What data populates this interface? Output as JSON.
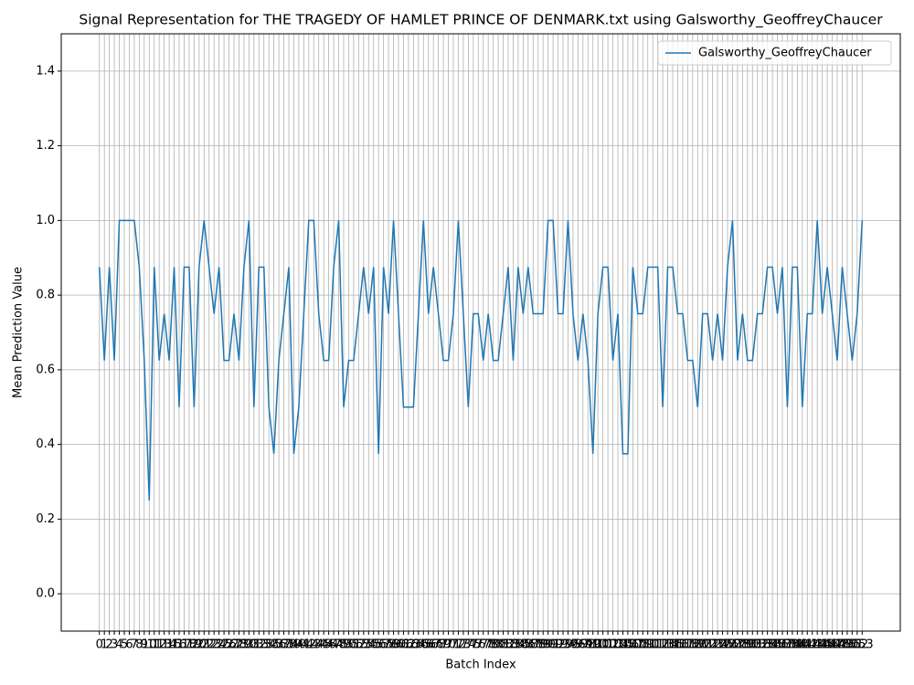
{
  "chart_data": {
    "type": "line",
    "title": "Signal Representation for THE TRAGEDY OF HAMLET PRINCE OF DENMARK.txt using Galsworthy_GeoffreyChaucer",
    "xlabel": "Batch Index",
    "ylabel": "Mean Prediction Value",
    "x": [
      0,
      1,
      2,
      3,
      4,
      5,
      6,
      7,
      8,
      9,
      10,
      11,
      12,
      13,
      14,
      15,
      16,
      17,
      18,
      19,
      20,
      21,
      22,
      23,
      24,
      25,
      26,
      27,
      28,
      29,
      30,
      31,
      32,
      33,
      34,
      35,
      36,
      37,
      38,
      39,
      40,
      41,
      42,
      43,
      44,
      45,
      46,
      47,
      48,
      49,
      50,
      51,
      52,
      53,
      54,
      55,
      56,
      57,
      58,
      59,
      60,
      61,
      62,
      63,
      64,
      65,
      66,
      67,
      68,
      69,
      70,
      71,
      72,
      73,
      74,
      75,
      76,
      77,
      78,
      79,
      80,
      81,
      82,
      83,
      84,
      85,
      86,
      87,
      88,
      89,
      90,
      91,
      92,
      93,
      94,
      95,
      96,
      97,
      98,
      99,
      100,
      101,
      102,
      103,
      104,
      105,
      106,
      107,
      108,
      109,
      110,
      111,
      112,
      113,
      114,
      115,
      116,
      117,
      118,
      119,
      120,
      121,
      122,
      123,
      124,
      125,
      126,
      127,
      128,
      129,
      130,
      131,
      132,
      133,
      134,
      135,
      136,
      137,
      138,
      139,
      140,
      141,
      142,
      143,
      144,
      145,
      146,
      147,
      148,
      149,
      150,
      151,
      152,
      153
    ],
    "series": [
      {
        "name": "Galsworthy_GeoffreyChaucer",
        "color": "#1f77b4",
        "values": [
          0.875,
          0.625,
          0.875,
          0.625,
          1.0,
          1.0,
          1.0,
          1.0,
          0.875,
          0.625,
          0.25,
          0.875,
          0.625,
          0.75,
          0.625,
          0.875,
          0.5,
          0.875,
          0.875,
          0.5,
          0.875,
          1.0,
          0.875,
          0.75,
          0.875,
          0.625,
          0.625,
          0.75,
          0.625,
          0.875,
          1.0,
          0.5,
          0.875,
          0.875,
          0.5,
          0.375,
          0.625,
          0.75,
          0.875,
          0.375,
          0.5,
          0.75,
          1.0,
          1.0,
          0.75,
          0.625,
          0.625,
          0.875,
          1.0,
          0.5,
          0.625,
          0.625,
          0.75,
          0.875,
          0.75,
          0.875,
          0.375,
          0.875,
          0.75,
          1.0,
          0.75,
          0.5,
          0.5,
          0.5,
          0.75,
          1.0,
          0.75,
          0.875,
          0.75,
          0.625,
          0.625,
          0.75,
          1.0,
          0.75,
          0.5,
          0.75,
          0.75,
          0.625,
          0.75,
          0.625,
          0.625,
          0.75,
          0.875,
          0.625,
          0.875,
          0.75,
          0.875,
          0.75,
          0.75,
          0.75,
          1.0,
          1.0,
          0.75,
          0.75,
          1.0,
          0.75,
          0.625,
          0.75,
          0.625,
          0.375,
          0.75,
          0.875,
          0.875,
          0.625,
          0.75,
          0.375,
          0.375,
          0.875,
          0.75,
          0.75,
          0.875,
          0.875,
          0.875,
          0.5,
          0.875,
          0.875,
          0.75,
          0.75,
          0.625,
          0.625,
          0.5,
          0.75,
          0.75,
          0.625,
          0.75,
          0.625,
          0.875,
          1.0,
          0.625,
          0.75,
          0.625,
          0.625,
          0.75,
          0.75,
          0.875,
          0.875,
          0.75,
          0.875,
          0.5,
          0.875,
          0.875,
          0.5,
          0.75,
          0.75,
          1.0,
          0.75,
          0.875,
          0.75,
          0.625,
          0.875,
          0.75,
          0.625,
          0.75,
          1.0
        ]
      }
    ],
    "xlim": [
      -7.65,
      160.65
    ],
    "xticks": [
      0,
      1,
      2,
      3,
      4,
      5,
      6,
      7,
      8,
      9,
      10,
      11,
      12,
      13,
      14,
      15,
      16,
      17,
      18,
      19,
      20,
      21,
      22,
      23,
      24,
      25,
      26,
      27,
      28,
      29,
      30,
      31,
      32,
      33,
      34,
      35,
      36,
      37,
      38,
      39,
      40,
      41,
      42,
      43,
      44,
      45,
      46,
      47,
      48,
      49,
      50,
      51,
      52,
      53,
      54,
      55,
      56,
      57,
      58,
      59,
      60,
      61,
      62,
      63,
      64,
      65,
      66,
      67,
      68,
      69,
      70,
      71,
      72,
      73,
      74,
      75,
      76,
      77,
      78,
      79,
      80,
      81,
      82,
      83,
      84,
      85,
      86,
      87,
      88,
      89,
      90,
      91,
      92,
      93,
      94,
      95,
      96,
      97,
      98,
      99,
      100,
      101,
      102,
      103,
      104,
      105,
      106,
      107,
      108,
      109,
      110,
      111,
      112,
      113,
      114,
      115,
      116,
      117,
      118,
      119,
      120,
      121,
      122,
      123,
      124,
      125,
      126,
      127,
      128,
      129,
      130,
      131,
      132,
      133,
      134,
      135,
      136,
      137,
      138,
      139,
      140,
      141,
      142,
      143,
      144,
      145,
      146,
      147,
      148,
      149,
      150,
      151,
      152,
      153
    ],
    "ylim": [
      -0.1,
      1.5
    ],
    "yticks": [
      {
        "value": 0,
        "label": "0.0"
      },
      {
        "value": 0.2,
        "label": "0.2"
      },
      {
        "value": 0.4,
        "label": "0.4"
      },
      {
        "value": 0.6,
        "label": "0.6"
      },
      {
        "value": 0.8,
        "label": "0.8"
      },
      {
        "value": 1.0,
        "label": "1.0"
      },
      {
        "value": 1.2,
        "label": "1.2"
      },
      {
        "value": 1.4,
        "label": "1.4"
      }
    ],
    "grid": true,
    "legend": "upper-right"
  }
}
